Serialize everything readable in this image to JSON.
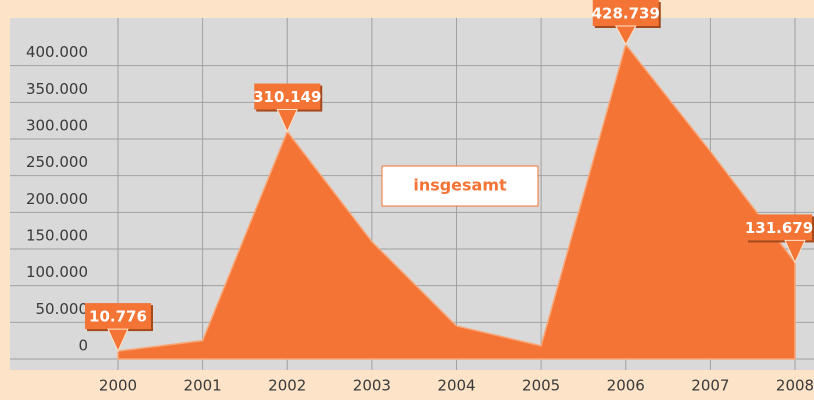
{
  "chart_data": {
    "type": "area",
    "categories": [
      "2000",
      "2001",
      "2002",
      "2003",
      "2004",
      "2005",
      "2006",
      "2007",
      "2008"
    ],
    "series": [
      {
        "name": "insgesamt",
        "color": "#f37435",
        "values": [
          10776,
          25000,
          310149,
          160000,
          45000,
          18000,
          428739,
          283000,
          131679
        ],
        "value_labels": [
          "10.776",
          null,
          "310.149",
          null,
          null,
          null,
          "428.739",
          null,
          "131.679"
        ]
      }
    ],
    "ylim": [
      -15000,
      465000
    ],
    "yticks": [
      0,
      {
        "value": 50000,
        "label": "50.000"
      },
      {
        "value": 100000,
        "label": "100.000"
      },
      {
        "value": 150000,
        "label": "150.000"
      },
      {
        "value": 200000,
        "label": "200.000"
      },
      {
        "value": 250000,
        "label": "250.000"
      },
      {
        "value": 300000,
        "label": "300.000"
      },
      {
        "value": 350000,
        "label": "350.000"
      },
      {
        "value": 400000,
        "label": "400.000"
      }
    ],
    "grid": true
  }
}
